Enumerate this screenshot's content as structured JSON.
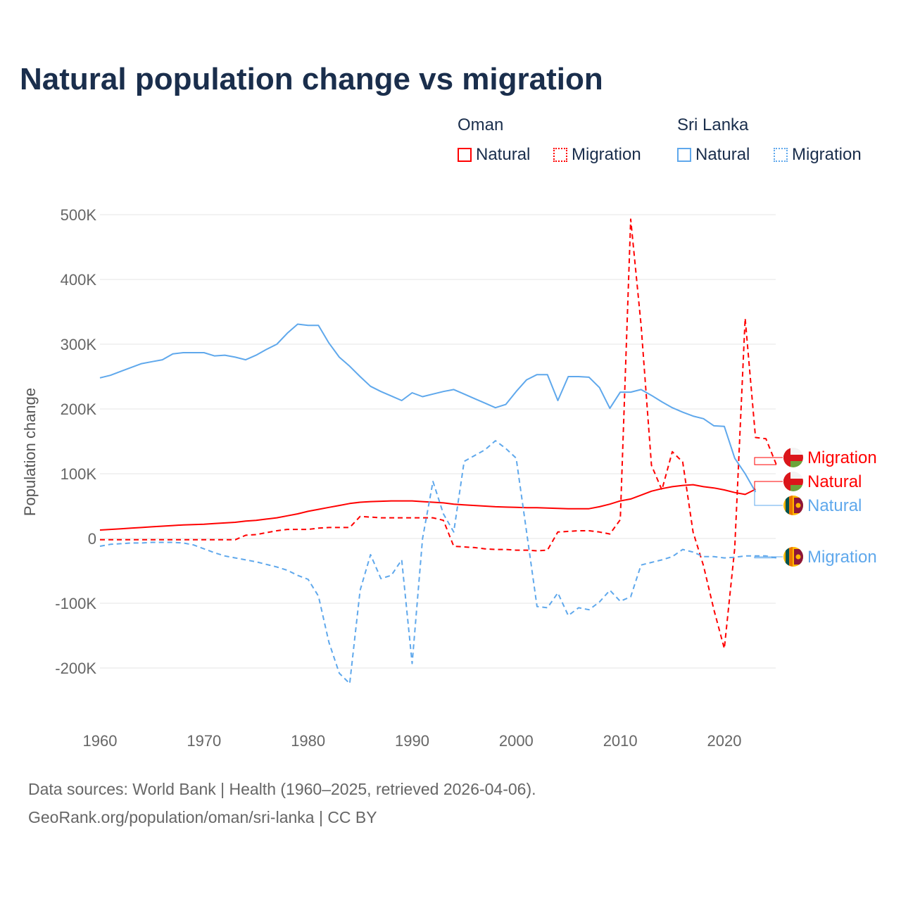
{
  "title": "Natural population change vs migration",
  "legend": {
    "groups": [
      {
        "name": "Oman",
        "color": "#ff0000",
        "items": [
          "Natural",
          "Migration"
        ]
      },
      {
        "name": "Sri Lanka",
        "color": "#5fa8ec",
        "items": [
          "Natural",
          "Migration"
        ]
      }
    ]
  },
  "footer": {
    "line1": "Data sources: World Bank | Health (1960–2025, retrieved 2026-04-06).",
    "line2": "GeoRank.org/population/oman/sri-lanka | CC BY"
  },
  "chart_data": {
    "type": "line",
    "title": "Natural population change vs migration",
    "xlabel": "",
    "ylabel": "Population change",
    "xlim": [
      1960,
      2025
    ],
    "ylim": [
      -200000,
      500000
    ],
    "xticks": [
      1960,
      1970,
      1980,
      1990,
      2000,
      2010,
      2020
    ],
    "xtick_labels": [
      "1960",
      "1970",
      "1980",
      "1990",
      "2000",
      "2010",
      "2020"
    ],
    "yticks": [
      -200000,
      -100000,
      0,
      100000,
      200000,
      300000,
      400000,
      500000
    ],
    "ytick_labels": [
      "-200K",
      "-100K",
      "0",
      "100K",
      "200K",
      "300K",
      "400K",
      "500K"
    ],
    "grid": true,
    "legend_placement": "top-right",
    "series": [
      {
        "name": "Oman Natural",
        "end_label": "Natural",
        "color": "#ff0000",
        "dash": false,
        "start": 1960,
        "values": [
          13,
          14,
          15,
          16,
          17,
          18,
          19,
          20,
          21,
          21.5,
          22,
          23,
          24,
          25,
          27,
          28,
          30,
          32,
          35,
          38,
          42,
          45,
          48,
          51,
          54,
          56,
          57,
          57.5,
          58,
          58,
          58,
          57,
          56,
          55,
          53,
          52,
          51,
          50,
          49,
          48.5,
          48,
          47.5,
          47.5,
          47,
          46.5,
          46,
          46,
          46,
          49,
          53,
          58,
          61,
          67,
          73,
          77,
          80,
          82,
          83,
          80,
          78,
          75,
          71,
          68,
          76
        ]
      },
      {
        "name": "Oman Migration",
        "end_label": "Migration",
        "color": "#ff0000",
        "dash": true,
        "start": 1960,
        "values": [
          -2,
          -2,
          -2,
          -2,
          -2,
          -2,
          -2,
          -2,
          -2,
          -2,
          -2,
          -2,
          -2,
          -2,
          5,
          6,
          9,
          12,
          14,
          14,
          14,
          16,
          17,
          17,
          17,
          34,
          33,
          32,
          32,
          32,
          32,
          32,
          32,
          28,
          -12,
          -13,
          -14,
          -16,
          -17,
          -17,
          -18,
          -18,
          -19,
          -18,
          10,
          11,
          12,
          12,
          10,
          7,
          29,
          493,
          330,
          113,
          75,
          134,
          118,
          10,
          -42,
          -110,
          -170,
          -15,
          340,
          156,
          154,
          114
        ]
      },
      {
        "name": "Sri Lanka Natural",
        "end_label": "Natural",
        "color": "#5fa8ec",
        "dash": false,
        "start": 1960,
        "values": [
          248,
          252,
          258,
          264,
          270,
          273,
          276,
          285,
          287,
          287,
          287,
          282,
          283,
          280,
          276,
          283,
          292,
          300,
          317,
          331,
          329,
          329,
          302,
          280,
          266,
          250,
          235,
          227,
          220,
          213,
          225,
          219,
          223,
          227,
          230,
          223,
          216,
          209,
          202,
          207,
          227,
          245,
          253,
          253,
          213,
          250,
          250,
          249,
          233,
          201,
          226,
          226,
          230,
          221,
          211,
          202,
          195,
          189,
          185,
          174,
          173,
          124,
          100,
          72
        ]
      },
      {
        "name": "Sri Lanka Migration",
        "end_label": "Migration",
        "color": "#5fa8ec",
        "dash": true,
        "start": 1960,
        "values": [
          -12,
          -9,
          -8,
          -7,
          -7,
          -6,
          -6,
          -6,
          -7,
          -10,
          -16,
          -22,
          -27,
          -30,
          -33,
          -36,
          -40,
          -44,
          -49,
          -57,
          -63,
          -89,
          -160,
          -208,
          -224,
          -80,
          -25,
          -62,
          -57,
          -33,
          -193,
          0,
          88,
          38,
          10,
          119,
          128,
          137,
          151,
          139,
          124,
          10,
          -105,
          -107,
          -84,
          -119,
          -107,
          -110,
          -98,
          -80,
          -97,
          -90,
          -41,
          -37,
          -33,
          -28,
          -17,
          -21,
          -28,
          -28,
          -30,
          -29,
          -27,
          -27,
          -27,
          -30
        ]
      }
    ],
    "value_unit": "thousands"
  }
}
